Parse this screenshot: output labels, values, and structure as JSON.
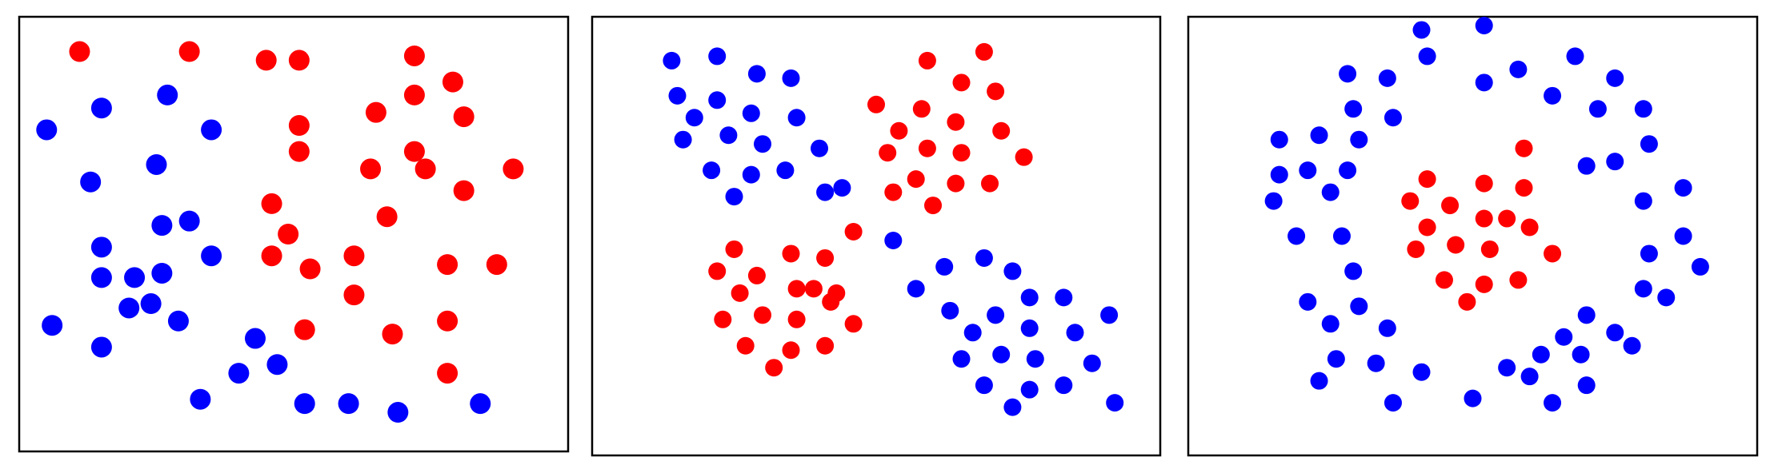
{
  "colors": {
    "class_a": "#0000ff",
    "class_b": "#ff0000",
    "frame": "#000000",
    "background": "#ffffff"
  },
  "chart_data": [
    {
      "type": "scatter",
      "grid": false,
      "title": "",
      "xlim": [
        0,
        1
      ],
      "ylim": [
        0,
        1
      ],
      "series": [
        {
          "color": "#0000ff",
          "points": [
            [
              0.05,
              0.74
            ],
            [
              0.15,
              0.79
            ],
            [
              0.27,
              0.82
            ],
            [
              0.35,
              0.74
            ],
            [
              0.13,
              0.62
            ],
            [
              0.25,
              0.66
            ],
            [
              0.15,
              0.47
            ],
            [
              0.26,
              0.52
            ],
            [
              0.31,
              0.53
            ],
            [
              0.35,
              0.45
            ],
            [
              0.15,
              0.4
            ],
            [
              0.21,
              0.4
            ],
            [
              0.26,
              0.41
            ],
            [
              0.2,
              0.33
            ],
            [
              0.24,
              0.34
            ],
            [
              0.29,
              0.3
            ],
            [
              0.06,
              0.29
            ],
            [
              0.15,
              0.24
            ],
            [
              0.43,
              0.26
            ],
            [
              0.4,
              0.18
            ],
            [
              0.47,
              0.2
            ],
            [
              0.33,
              0.12
            ],
            [
              0.52,
              0.11
            ],
            [
              0.6,
              0.11
            ],
            [
              0.69,
              0.09
            ],
            [
              0.84,
              0.11
            ]
          ]
        },
        {
          "color": "#ff0000",
          "points": [
            [
              0.11,
              0.92
            ],
            [
              0.31,
              0.92
            ],
            [
              0.45,
              0.9
            ],
            [
              0.51,
              0.9
            ],
            [
              0.72,
              0.91
            ],
            [
              0.79,
              0.85
            ],
            [
              0.72,
              0.82
            ],
            [
              0.65,
              0.78
            ],
            [
              0.81,
              0.77
            ],
            [
              0.51,
              0.75
            ],
            [
              0.51,
              0.69
            ],
            [
              0.72,
              0.69
            ],
            [
              0.74,
              0.65
            ],
            [
              0.9,
              0.65
            ],
            [
              0.64,
              0.65
            ],
            [
              0.81,
              0.6
            ],
            [
              0.46,
              0.57
            ],
            [
              0.67,
              0.54
            ],
            [
              0.49,
              0.5
            ],
            [
              0.61,
              0.45
            ],
            [
              0.46,
              0.45
            ],
            [
              0.53,
              0.42
            ],
            [
              0.78,
              0.43
            ],
            [
              0.87,
              0.43
            ],
            [
              0.61,
              0.36
            ],
            [
              0.78,
              0.3
            ],
            [
              0.52,
              0.28
            ],
            [
              0.68,
              0.27
            ],
            [
              0.78,
              0.18
            ]
          ]
        }
      ]
    },
    {
      "type": "scatter",
      "grid": false,
      "title": "",
      "xlim": [
        0,
        1
      ],
      "ylim": [
        0,
        1
      ],
      "series": [
        {
          "color": "#0000ff",
          "points": [
            [
              0.14,
              0.9
            ],
            [
              0.22,
              0.91
            ],
            [
              0.29,
              0.87
            ],
            [
              0.35,
              0.86
            ],
            [
              0.15,
              0.82
            ],
            [
              0.22,
              0.81
            ],
            [
              0.18,
              0.77
            ],
            [
              0.28,
              0.78
            ],
            [
              0.36,
              0.77
            ],
            [
              0.16,
              0.72
            ],
            [
              0.24,
              0.73
            ],
            [
              0.3,
              0.71
            ],
            [
              0.4,
              0.7
            ],
            [
              0.21,
              0.65
            ],
            [
              0.28,
              0.64
            ],
            [
              0.34,
              0.65
            ],
            [
              0.25,
              0.59
            ],
            [
              0.41,
              0.6
            ],
            [
              0.44,
              0.61
            ],
            [
              0.53,
              0.49
            ],
            [
              0.62,
              0.43
            ],
            [
              0.69,
              0.45
            ],
            [
              0.74,
              0.42
            ],
            [
              0.57,
              0.38
            ],
            [
              0.63,
              0.33
            ],
            [
              0.71,
              0.32
            ],
            [
              0.77,
              0.36
            ],
            [
              0.83,
              0.36
            ],
            [
              0.91,
              0.32
            ],
            [
              0.67,
              0.28
            ],
            [
              0.77,
              0.29
            ],
            [
              0.85,
              0.28
            ],
            [
              0.65,
              0.22
            ],
            [
              0.72,
              0.23
            ],
            [
              0.78,
              0.22
            ],
            [
              0.88,
              0.21
            ],
            [
              0.69,
              0.16
            ],
            [
              0.77,
              0.15
            ],
            [
              0.83,
              0.16
            ],
            [
              0.74,
              0.11
            ],
            [
              0.92,
              0.12
            ]
          ]
        },
        {
          "color": "#ff0000",
          "points": [
            [
              0.59,
              0.9
            ],
            [
              0.69,
              0.92
            ],
            [
              0.65,
              0.85
            ],
            [
              0.71,
              0.83
            ],
            [
              0.5,
              0.8
            ],
            [
              0.58,
              0.79
            ],
            [
              0.54,
              0.74
            ],
            [
              0.64,
              0.76
            ],
            [
              0.72,
              0.74
            ],
            [
              0.52,
              0.69
            ],
            [
              0.59,
              0.7
            ],
            [
              0.65,
              0.69
            ],
            [
              0.76,
              0.68
            ],
            [
              0.57,
              0.63
            ],
            [
              0.64,
              0.62
            ],
            [
              0.7,
              0.62
            ],
            [
              0.53,
              0.6
            ],
            [
              0.6,
              0.57
            ],
            [
              0.46,
              0.51
            ],
            [
              0.25,
              0.47
            ],
            [
              0.35,
              0.46
            ],
            [
              0.41,
              0.45
            ],
            [
              0.22,
              0.42
            ],
            [
              0.29,
              0.41
            ],
            [
              0.36,
              0.38
            ],
            [
              0.39,
              0.38
            ],
            [
              0.43,
              0.37
            ],
            [
              0.26,
              0.37
            ],
            [
              0.42,
              0.35
            ],
            [
              0.23,
              0.31
            ],
            [
              0.3,
              0.32
            ],
            [
              0.36,
              0.31
            ],
            [
              0.46,
              0.3
            ],
            [
              0.27,
              0.25
            ],
            [
              0.35,
              0.24
            ],
            [
              0.41,
              0.25
            ],
            [
              0.32,
              0.2
            ]
          ]
        }
      ]
    },
    {
      "type": "scatter",
      "grid": false,
      "title": "",
      "xlim": [
        0,
        1
      ],
      "ylim": [
        0,
        1
      ],
      "series": [
        {
          "color": "#0000ff",
          "points": [
            [
              0.41,
              0.97
            ],
            [
              0.52,
              0.98
            ],
            [
              0.42,
              0.91
            ],
            [
              0.58,
              0.88
            ],
            [
              0.52,
              0.85
            ],
            [
              0.68,
              0.91
            ],
            [
              0.28,
              0.87
            ],
            [
              0.35,
              0.86
            ],
            [
              0.75,
              0.86
            ],
            [
              0.64,
              0.82
            ],
            [
              0.29,
              0.79
            ],
            [
              0.36,
              0.77
            ],
            [
              0.72,
              0.79
            ],
            [
              0.8,
              0.79
            ],
            [
              0.16,
              0.72
            ],
            [
              0.23,
              0.73
            ],
            [
              0.3,
              0.72
            ],
            [
              0.81,
              0.71
            ],
            [
              0.21,
              0.65
            ],
            [
              0.28,
              0.65
            ],
            [
              0.7,
              0.66
            ],
            [
              0.75,
              0.67
            ],
            [
              0.25,
              0.6
            ],
            [
              0.16,
              0.64
            ],
            [
              0.15,
              0.58
            ],
            [
              0.87,
              0.61
            ],
            [
              0.8,
              0.58
            ],
            [
              0.27,
              0.5
            ],
            [
              0.19,
              0.5
            ],
            [
              0.87,
              0.5
            ],
            [
              0.81,
              0.46
            ],
            [
              0.9,
              0.43
            ],
            [
              0.29,
              0.42
            ],
            [
              0.8,
              0.38
            ],
            [
              0.84,
              0.36
            ],
            [
              0.21,
              0.35
            ],
            [
              0.3,
              0.34
            ],
            [
              0.25,
              0.3
            ],
            [
              0.35,
              0.29
            ],
            [
              0.7,
              0.32
            ],
            [
              0.75,
              0.28
            ],
            [
              0.66,
              0.27
            ],
            [
              0.78,
              0.25
            ],
            [
              0.26,
              0.22
            ],
            [
              0.33,
              0.21
            ],
            [
              0.62,
              0.23
            ],
            [
              0.69,
              0.23
            ],
            [
              0.23,
              0.17
            ],
            [
              0.41,
              0.19
            ],
            [
              0.56,
              0.2
            ],
            [
              0.6,
              0.18
            ],
            [
              0.36,
              0.12
            ],
            [
              0.5,
              0.13
            ],
            [
              0.64,
              0.12
            ],
            [
              0.7,
              0.16
            ]
          ]
        },
        {
          "color": "#ff0000",
          "points": [
            [
              0.59,
              0.7
            ],
            [
              0.42,
              0.63
            ],
            [
              0.52,
              0.62
            ],
            [
              0.59,
              0.61
            ],
            [
              0.39,
              0.58
            ],
            [
              0.46,
              0.57
            ],
            [
              0.52,
              0.54
            ],
            [
              0.56,
              0.54
            ],
            [
              0.6,
              0.52
            ],
            [
              0.42,
              0.52
            ],
            [
              0.47,
              0.48
            ],
            [
              0.53,
              0.47
            ],
            [
              0.64,
              0.46
            ],
            [
              0.4,
              0.47
            ],
            [
              0.45,
              0.4
            ],
            [
              0.52,
              0.39
            ],
            [
              0.58,
              0.4
            ],
            [
              0.49,
              0.35
            ]
          ]
        }
      ]
    }
  ]
}
